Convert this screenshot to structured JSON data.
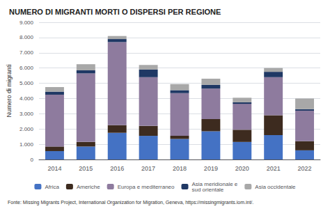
{
  "chart_data": {
    "type": "bar",
    "title": "NUMERO DI MIGRANTI MORTI O DISPERSI PER REGIONE",
    "ylabel": "Numero di migranti",
    "categories": [
      "2014",
      "2015",
      "2016",
      "2017",
      "2018",
      "2019",
      "2020",
      "2021",
      "2022"
    ],
    "series": [
      {
        "name": "Africa",
        "color": "#4472C4",
        "values": [
          550,
          850,
          1750,
          1550,
          1350,
          1850,
          1150,
          1600,
          600
        ]
      },
      {
        "name": "Americhe",
        "color": "#3D2B1F",
        "values": [
          300,
          300,
          500,
          650,
          200,
          800,
          800,
          1300,
          600
        ]
      },
      {
        "name": "Europa e mediterraneo",
        "color": "#8E7B9E",
        "values": [
          3400,
          4500,
          5450,
          3200,
          2800,
          2000,
          1700,
          2500,
          2000
        ]
      },
      {
        "name": "Asia meridionale e\nsud orientale",
        "color": "#1F3864",
        "values": [
          200,
          200,
          200,
          500,
          200,
          250,
          100,
          350,
          100
        ]
      },
      {
        "name": "Asia occidentale",
        "color": "#A8A8A8",
        "values": [
          300,
          400,
          200,
          300,
          400,
          400,
          300,
          250,
          700
        ]
      }
    ],
    "stacked": true,
    "ylim": [
      0,
      9000
    ],
    "yticks": [
      0,
      {
        "value": 1000,
        "label": "1.000"
      },
      {
        "value": 2000,
        "label": "2.000"
      },
      {
        "value": 3000,
        "label": "3.000"
      },
      {
        "value": 4000,
        "label": "4.000"
      },
      {
        "value": 5000,
        "label": "5.000"
      },
      {
        "value": 6000,
        "label": "6.000"
      },
      {
        "value": 7000,
        "label": "7.000"
      },
      {
        "value": 8000,
        "label": "8.000"
      },
      {
        "value": 9000,
        "label": "9.000"
      }
    ],
    "grid": true,
    "legend": "bottom",
    "annotations": [
      "Fonte: Missing Migrants Project, International Organization for Migration, Geneva, https://missingmigrants.iom.int/."
    ]
  }
}
